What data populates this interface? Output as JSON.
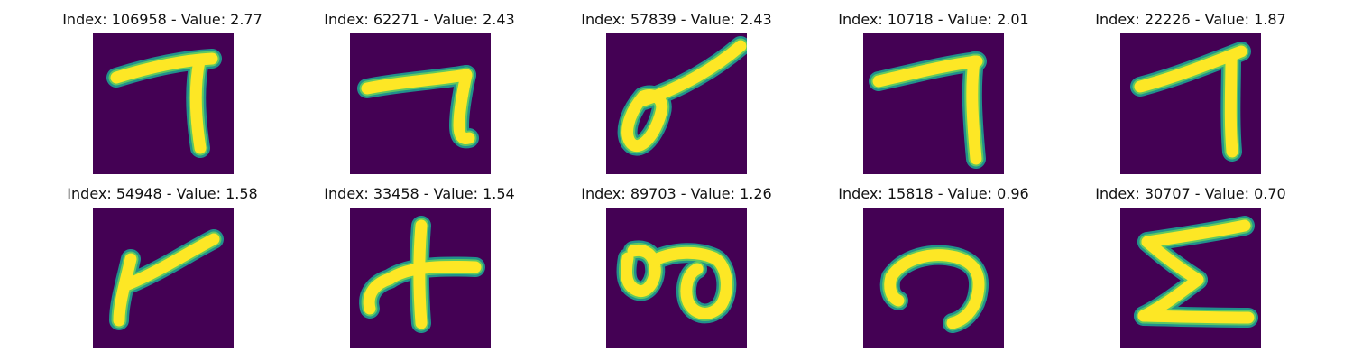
{
  "figure": {
    "colors": {
      "background": "#ffffff",
      "image_background": "#440154",
      "stroke_edge": "#21918c",
      "stroke_mid": "#5ec962",
      "stroke_core": "#fde725"
    },
    "panels": [
      {
        "title": "Index: 106958 - Value: 2.77",
        "glyph": "seven-tall"
      },
      {
        "title": "Index: 62271 - Value: 2.43",
        "glyph": "seven-hook"
      },
      {
        "title": "Index: 57839 - Value: 2.43",
        "glyph": "loop-diagonal"
      },
      {
        "title": "Index: 10718 - Value: 2.01",
        "glyph": "seven-thin"
      },
      {
        "title": "Index: 22226 - Value: 1.87",
        "glyph": "seven-wide"
      },
      {
        "title": "Index: 54948 - Value: 1.58",
        "glyph": "y-shape"
      },
      {
        "title": "Index: 33458 - Value: 1.54",
        "glyph": "cross-curve"
      },
      {
        "title": "Index: 89703 - Value: 1.26",
        "glyph": "double-loop"
      },
      {
        "title": "Index: 15818 - Value: 0.96",
        "glyph": "arch"
      },
      {
        "title": "Index: 30707 - Value: 0.70",
        "glyph": "sigma"
      }
    ]
  }
}
